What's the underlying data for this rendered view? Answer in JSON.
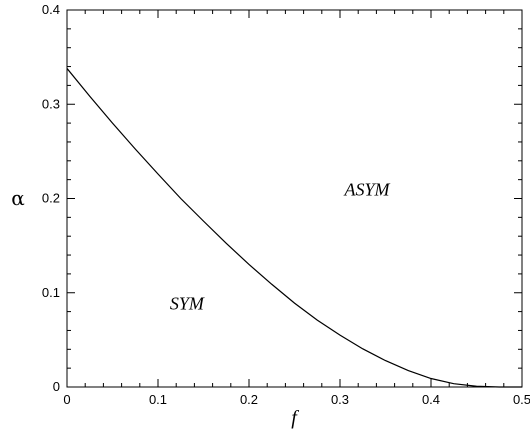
{
  "chart_data": {
    "type": "line",
    "title": "",
    "xlabel": "f",
    "ylabel": "α",
    "xlim": [
      0,
      0.5
    ],
    "ylim": [
      0,
      0.4
    ],
    "x_ticks": [
      "0",
      "0.1",
      "0.2",
      "0.3",
      "0.4",
      "0.5"
    ],
    "y_ticks": [
      "0",
      "0.1",
      "0.2",
      "0.3",
      "0.4"
    ],
    "grid": false,
    "series": [
      {
        "x": [
          0,
          0.025,
          0.05,
          0.075,
          0.1,
          0.125,
          0.15,
          0.175,
          0.2,
          0.225,
          0.25,
          0.275,
          0.3,
          0.325,
          0.35,
          0.375,
          0.4,
          0.425,
          0.45,
          0.475,
          0.5
        ],
        "y": [
          0.338,
          0.3085,
          0.28,
          0.2525,
          0.226,
          0.2,
          0.176,
          0.1525,
          0.13,
          0.109,
          0.089,
          0.071,
          0.055,
          0.0405,
          0.028,
          0.0175,
          0.009,
          0.0035,
          0.0008,
          0.0,
          0.0
        ]
      }
    ],
    "annotations": [
      {
        "text": "ASYM",
        "x": 0.305,
        "y": 0.203
      },
      {
        "text": "SYM",
        "x": 0.113,
        "y": 0.082
      }
    ]
  }
}
